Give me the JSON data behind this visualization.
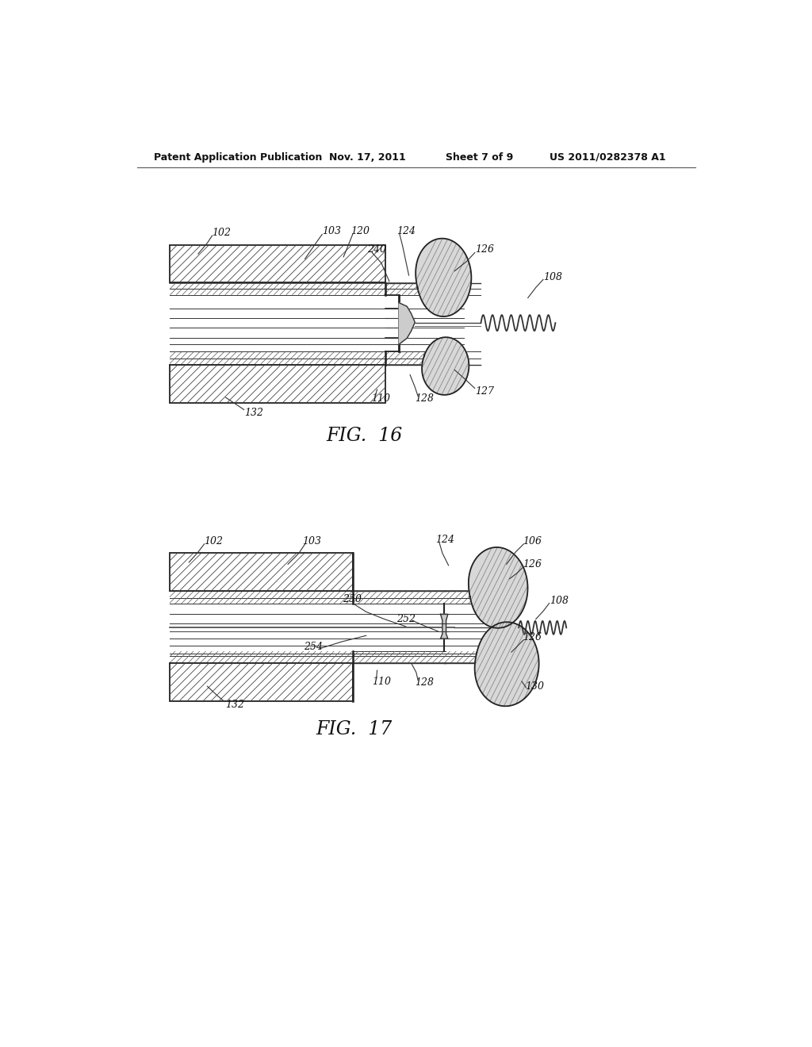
{
  "bg_color": "#ffffff",
  "header_text": "Patent Application Publication",
  "header_date": "Nov. 17, 2011",
  "header_sheet": "Sheet 7 of 9",
  "header_patent": "US 2011/0282378 A1",
  "fig16_caption": "FIG.  16",
  "fig17_caption": "FIG.  17"
}
